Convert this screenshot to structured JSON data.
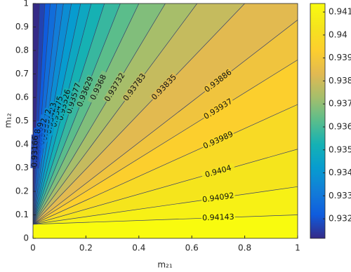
{
  "chart_data": {
    "type": "contour",
    "xlabel": "m₂₁",
    "ylabel": "m₁₂",
    "colormap": "parula",
    "xlim": [
      0,
      1
    ],
    "ylim": [
      0,
      1
    ],
    "xticks": [
      0,
      0.2,
      0.4,
      0.6,
      0.8,
      1
    ],
    "yticks": [
      0,
      0.1,
      0.2,
      0.3,
      0.4,
      0.5,
      0.6,
      0.7,
      0.8,
      0.9,
      1
    ],
    "clim": [
      0.93115,
      0.94137
    ],
    "cticks": [
      0.932,
      0.933,
      0.934,
      0.935,
      0.936,
      0.937,
      0.938,
      0.939,
      0.94,
      0.941
    ],
    "contours": [
      {
        "level": 0.94143,
        "x": [
          0,
          1
        ],
        "y": [
          0.06,
          0.1
        ]
      },
      {
        "level": 0.94092,
        "x": [
          0,
          1
        ],
        "y": [
          0.06,
          0.22
        ]
      },
      {
        "level": 0.9404,
        "x": [
          0,
          1
        ],
        "y": [
          0.06,
          0.38
        ]
      },
      {
        "level": 0.93989,
        "x": [
          0,
          1
        ],
        "y": [
          0.06,
          0.57
        ]
      },
      {
        "level": 0.93937,
        "x": [
          0,
          1
        ],
        "y": [
          0.06,
          0.76
        ]
      },
      {
        "level": 0.93886,
        "x": [
          0,
          1
        ],
        "y": [
          0.06,
          0.93
        ]
      },
      {
        "level": 0.93835,
        "x": [
          0,
          0.8
        ],
        "y": [
          0.06,
          1
        ]
      },
      {
        "level": 0.93783,
        "x": [
          0,
          0.62
        ],
        "y": [
          0.06,
          1
        ]
      },
      {
        "level": 0.93732,
        "x": [
          0,
          0.5
        ],
        "y": [
          0.06,
          1
        ]
      },
      {
        "level": 0.9368,
        "x": [
          0,
          0.4
        ],
        "y": [
          0.06,
          1
        ]
      },
      {
        "level": 0.93629,
        "x": [
          0,
          0.33
        ],
        "y": [
          0.06,
          1
        ]
      },
      {
        "level": 0.93577,
        "x": [
          0,
          0.27
        ],
        "y": [
          0.06,
          1
        ]
      },
      {
        "level": 0.93526,
        "x": [
          0,
          0.22
        ],
        "y": [
          0.06,
          1
        ]
      },
      {
        "level": 0.93475,
        "x": [
          0,
          0.18
        ],
        "y": [
          0.06,
          1
        ]
      },
      {
        "level": 0.93423,
        "x": [
          0,
          0.145
        ],
        "y": [
          0.06,
          1
        ]
      },
      {
        "level": 0.93372,
        "x": [
          0,
          0.115
        ],
        "y": [
          0.06,
          1
        ]
      },
      {
        "level": 0.9332,
        "x": [
          0,
          0.09
        ],
        "y": [
          0.06,
          1
        ]
      },
      {
        "level": 0.93269,
        "x": [
          0,
          0.065
        ],
        "y": [
          0.06,
          1
        ]
      },
      {
        "level": 0.93218,
        "x": [
          0,
          0.045
        ],
        "y": [
          0.06,
          1
        ]
      },
      {
        "level": 0.93166,
        "x": [
          0,
          0.025
        ],
        "y": [
          0.06,
          1
        ]
      }
    ]
  }
}
